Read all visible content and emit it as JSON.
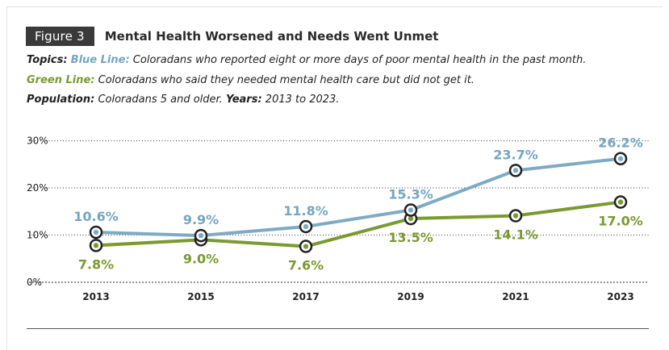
{
  "figure": {
    "label": "Figure 3",
    "title": "Mental Health Worsened and Needs Went Unmet"
  },
  "description": {
    "line1": {
      "topics_label": "Topics:",
      "blue_label": "Blue Line:",
      "blue_text": "Coloradans who reported eight or more days of poor mental health in the past month."
    },
    "line2": {
      "green_label": "Green Line:",
      "green_text": "Coloradans who said they needed mental health care but did not get it."
    },
    "line3": {
      "population_label": "Population:",
      "population_text": "Coloradans 5 and older.",
      "years_label": "Years:",
      "years_text": "2013 to 2023."
    }
  },
  "colors": {
    "blue": "#7eabc3",
    "blue_label": "#74a6c1",
    "green": "#7a9a31",
    "marker_outline": "#222222",
    "grid": "#555555",
    "text": "#222222"
  },
  "chart_data": {
    "type": "line",
    "x": [
      "2013",
      "2015",
      "2017",
      "2019",
      "2021",
      "2023"
    ],
    "y_ticks": [
      "0%",
      "10%",
      "20%",
      "30%"
    ],
    "ylim": [
      0,
      30
    ],
    "grid": true,
    "series": [
      {
        "key": "blue",
        "values": [
          10.6,
          9.9,
          11.8,
          15.3,
          23.7,
          26.2
        ],
        "labels": [
          "10.6%",
          "9.9%",
          "11.8%",
          "15.3%",
          "23.7%",
          "26.2%"
        ],
        "label_position": "above"
      },
      {
        "key": "green",
        "values": [
          7.8,
          9.0,
          7.6,
          13.5,
          14.1,
          17.0
        ],
        "labels": [
          "7.8%",
          "9.0%",
          "7.6%",
          "13.5%",
          "14.1%",
          "17.0%"
        ],
        "label_position": "below"
      }
    ]
  }
}
